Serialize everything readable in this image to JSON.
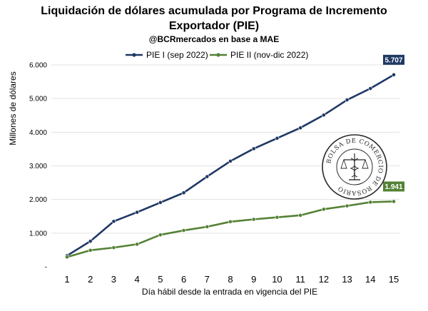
{
  "title_line1": "Liquidación de dólares acumulada por Programa de Incremento",
  "title_line2": "Exportador (PIE)",
  "subtitle": "@BCRmercados  en base a MAE",
  "logo_text": "BOLSA DE COMERCIO DE ROSARIO",
  "colors": {
    "pie1": "#1f3864",
    "pie2": "#548235",
    "grid": "#e3e3e3"
  },
  "chart_data": {
    "type": "line",
    "title": "Liquidación de dólares acumulada por Programa de Incremento Exportador (PIE)",
    "subtitle": "@BCRmercados  en base a MAE",
    "xlabel": "Día hábil desde la entrada en vigencia del PIE",
    "ylabel": "Millones de dólares",
    "x": [
      1,
      2,
      3,
      4,
      5,
      6,
      7,
      8,
      9,
      10,
      11,
      12,
      13,
      14,
      15
    ],
    "ylim": [
      0,
      6000
    ],
    "yticks": [
      0,
      1000,
      2000,
      3000,
      4000,
      5000,
      6000
    ],
    "ytick_labels": [
      "-",
      "1.000",
      "2.000",
      "3.000",
      "4.000",
      "5.000",
      "6.000"
    ],
    "grid": "horizontal",
    "legend_position": "top-center",
    "series": [
      {
        "name": "PIE I (sep 2022)",
        "color": "#1f3864",
        "values": [
          330,
          760,
          1350,
          1620,
          1910,
          2200,
          2680,
          3140,
          3510,
          3820,
          4130,
          4510,
          4960,
          5300,
          5707
        ],
        "end_label": "5.707"
      },
      {
        "name": "PIE II (nov-dic 2022)",
        "color": "#548235",
        "values": [
          290,
          490,
          570,
          670,
          950,
          1080,
          1190,
          1340,
          1410,
          1470,
          1530,
          1710,
          1810,
          1920,
          1941
        ],
        "end_label": "1.941"
      }
    ]
  }
}
